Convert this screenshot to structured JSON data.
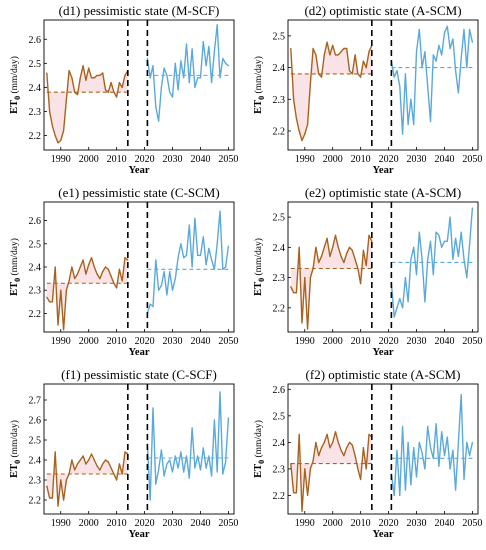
{
  "colors": {
    "hist": "#a8621e",
    "fut": "#5aa9dc",
    "shade": "#f7d9dd",
    "vline": "#000000"
  },
  "axes_labels": {
    "x": "Year",
    "y_main": "ET",
    "y_sub": "0",
    "y_unit": "(mm/day)"
  },
  "chart_data": [
    {
      "id": "d1",
      "type": "line",
      "title": "(d1) pessimistic state (M-SCF)",
      "xlim": [
        1984,
        2052
      ],
      "ylim": [
        2.14,
        2.68
      ],
      "xticks": [
        1990,
        2000,
        2010,
        2020,
        2030,
        2040,
        2050
      ],
      "yticks": [
        2.2,
        2.3,
        2.4,
        2.5,
        2.6
      ],
      "xlabel": "Year",
      "ylabel": "ET0 (mm/day)",
      "vlines": [
        2014,
        2021
      ],
      "series": [
        {
          "role": "historical",
          "x": [
            1985,
            1986,
            1987,
            1988,
            1989,
            1990,
            1991,
            1992,
            1993,
            1994,
            1995,
            1996,
            1997,
            1998,
            1999,
            2000,
            2001,
            2002,
            2003,
            2004,
            2005,
            2006,
            2007,
            2008,
            2009,
            2010,
            2011,
            2012,
            2013,
            2014
          ],
          "values": [
            2.46,
            2.3,
            2.24,
            2.2,
            2.17,
            2.18,
            2.22,
            2.35,
            2.47,
            2.44,
            2.38,
            2.37,
            2.44,
            2.49,
            2.43,
            2.48,
            2.44,
            2.44,
            2.45,
            2.45,
            2.46,
            2.39,
            2.38,
            2.42,
            2.38,
            2.36,
            2.42,
            2.4,
            2.45,
            2.47
          ],
          "mean": 2.38
        },
        {
          "role": "future",
          "x": [
            2021,
            2022,
            2023,
            2024,
            2025,
            2026,
            2027,
            2028,
            2029,
            2030,
            2031,
            2032,
            2033,
            2034,
            2035,
            2036,
            2037,
            2038,
            2039,
            2040,
            2041,
            2042,
            2043,
            2044,
            2045,
            2046,
            2047,
            2048,
            2049,
            2050
          ],
          "values": [
            2.52,
            2.44,
            2.49,
            2.32,
            2.26,
            2.4,
            2.48,
            2.45,
            2.38,
            2.36,
            2.5,
            2.39,
            2.51,
            2.44,
            2.58,
            2.42,
            2.56,
            2.4,
            2.44,
            2.44,
            2.59,
            2.49,
            2.57,
            2.42,
            2.55,
            2.66,
            2.44,
            2.52,
            2.5,
            2.49
          ],
          "mean": 2.45
        }
      ]
    },
    {
      "id": "d2",
      "type": "line",
      "title": "(d2) optimistic state (A-SCM)",
      "xlim": [
        1984,
        2052
      ],
      "ylim": [
        2.14,
        2.55
      ],
      "xticks": [
        1990,
        2000,
        2010,
        2020,
        2030,
        2040,
        2050
      ],
      "yticks": [
        2.2,
        2.3,
        2.4,
        2.5
      ],
      "xlabel": "Year",
      "ylabel": "ET0 (mm/day)",
      "vlines": [
        2014,
        2021
      ],
      "series": [
        {
          "role": "historical",
          "x": [
            1985,
            1986,
            1987,
            1988,
            1989,
            1990,
            1991,
            1992,
            1993,
            1994,
            1995,
            1996,
            1997,
            1998,
            1999,
            2000,
            2001,
            2002,
            2003,
            2004,
            2005,
            2006,
            2007,
            2008,
            2009,
            2010,
            2011,
            2012,
            2013,
            2014
          ],
          "values": [
            2.46,
            2.3,
            2.24,
            2.2,
            2.17,
            2.19,
            2.22,
            2.35,
            2.46,
            2.44,
            2.38,
            2.37,
            2.44,
            2.48,
            2.44,
            2.47,
            2.44,
            2.44,
            2.45,
            2.46,
            2.46,
            2.39,
            2.38,
            2.44,
            2.38,
            2.37,
            2.42,
            2.4,
            2.45,
            2.47
          ],
          "mean": 2.38
        },
        {
          "role": "future",
          "x": [
            2021,
            2022,
            2023,
            2024,
            2025,
            2026,
            2027,
            2028,
            2029,
            2030,
            2031,
            2032,
            2033,
            2034,
            2035,
            2036,
            2037,
            2038,
            2039,
            2040,
            2041,
            2042,
            2043,
            2044,
            2045,
            2046,
            2047,
            2048,
            2049,
            2050
          ],
          "values": [
            2.42,
            2.37,
            2.39,
            2.34,
            2.19,
            2.38,
            2.22,
            2.3,
            2.22,
            2.45,
            2.52,
            2.4,
            2.45,
            2.34,
            2.23,
            2.44,
            2.42,
            2.47,
            2.44,
            2.51,
            2.53,
            2.46,
            2.49,
            2.39,
            2.32,
            2.43,
            2.52,
            2.4,
            2.52,
            2.48
          ],
          "mean": 2.4
        }
      ]
    },
    {
      "id": "e1",
      "type": "line",
      "title": "(e1) pessimistic state (C-SCM)",
      "xlim": [
        1984,
        2052
      ],
      "ylim": [
        2.12,
        2.68
      ],
      "xticks": [
        1990,
        2000,
        2010,
        2020,
        2030,
        2040,
        2050
      ],
      "yticks": [
        2.2,
        2.3,
        2.4,
        2.5,
        2.6
      ],
      "xlabel": "Year",
      "ylabel": "ET0 (mm/day)",
      "vlines": [
        2014,
        2021
      ],
      "series": [
        {
          "role": "historical",
          "x": [
            1985,
            1986,
            1987,
            1988,
            1989,
            1990,
            1991,
            1992,
            1993,
            1994,
            1995,
            1996,
            1997,
            1998,
            1999,
            2000,
            2001,
            2002,
            2003,
            2004,
            2005,
            2006,
            2007,
            2008,
            2009,
            2010,
            2011,
            2012,
            2013,
            2014
          ],
          "values": [
            2.27,
            2.25,
            2.25,
            2.4,
            2.15,
            2.3,
            2.13,
            2.3,
            2.34,
            2.4,
            2.35,
            2.37,
            2.4,
            2.43,
            2.37,
            2.41,
            2.44,
            2.4,
            2.37,
            2.35,
            2.38,
            2.4,
            2.39,
            2.36,
            2.33,
            2.31,
            2.39,
            2.34,
            2.44,
            2.43
          ],
          "mean": 2.33
        },
        {
          "role": "future",
          "x": [
            2021,
            2022,
            2023,
            2024,
            2025,
            2026,
            2027,
            2028,
            2029,
            2030,
            2031,
            2032,
            2033,
            2034,
            2035,
            2036,
            2037,
            2038,
            2039,
            2040,
            2041,
            2042,
            2043,
            2044,
            2045,
            2046,
            2047,
            2048,
            2049,
            2050
          ],
          "values": [
            2.2,
            2.24,
            2.23,
            2.43,
            2.3,
            2.32,
            2.38,
            2.28,
            2.38,
            2.3,
            2.35,
            2.44,
            2.5,
            2.44,
            2.45,
            2.58,
            2.4,
            2.61,
            2.45,
            2.45,
            2.53,
            2.41,
            2.48,
            2.43,
            2.39,
            2.5,
            2.64,
            2.39,
            2.4,
            2.49
          ],
          "mean": 2.39
        }
      ]
    },
    {
      "id": "e2",
      "type": "line",
      "title": "(e2) optimistic state (A-SCM)",
      "xlim": [
        1984,
        2052
      ],
      "ylim": [
        2.12,
        2.55
      ],
      "xticks": [
        1990,
        2000,
        2010,
        2020,
        2030,
        2040,
        2050
      ],
      "yticks": [
        2.2,
        2.3,
        2.4,
        2.5
      ],
      "xlabel": "Year",
      "ylabel": "ET0 (mm/day)",
      "vlines": [
        2014,
        2021
      ],
      "series": [
        {
          "role": "historical",
          "x": [
            1985,
            1986,
            1987,
            1988,
            1989,
            1990,
            1991,
            1992,
            1993,
            1994,
            1995,
            1996,
            1997,
            1998,
            1999,
            2000,
            2001,
            2002,
            2003,
            2004,
            2005,
            2006,
            2007,
            2008,
            2009,
            2010,
            2011,
            2012,
            2013,
            2014
          ],
          "values": [
            2.27,
            2.25,
            2.25,
            2.4,
            2.15,
            2.3,
            2.13,
            2.3,
            2.33,
            2.4,
            2.35,
            2.37,
            2.4,
            2.43,
            2.37,
            2.4,
            2.44,
            2.4,
            2.37,
            2.35,
            2.38,
            2.4,
            2.39,
            2.36,
            2.33,
            2.28,
            2.39,
            2.34,
            2.44,
            2.42
          ],
          "mean": 2.33
        },
        {
          "role": "future",
          "x": [
            2021,
            2022,
            2023,
            2024,
            2025,
            2026,
            2027,
            2028,
            2029,
            2030,
            2031,
            2032,
            2033,
            2034,
            2035,
            2036,
            2037,
            2038,
            2039,
            2040,
            2041,
            2042,
            2043,
            2044,
            2045,
            2046,
            2047,
            2048,
            2049,
            2050
          ],
          "values": [
            2.28,
            2.17,
            2.2,
            2.23,
            2.2,
            2.3,
            2.22,
            2.36,
            2.4,
            2.31,
            2.45,
            2.36,
            2.22,
            2.36,
            2.42,
            2.31,
            2.45,
            2.44,
            2.4,
            2.42,
            2.42,
            2.5,
            2.36,
            2.43,
            2.37,
            2.45,
            2.36,
            2.3,
            2.41,
            2.53
          ],
          "mean": 2.35
        }
      ]
    },
    {
      "id": "f1",
      "type": "line",
      "title": "(f1) pessimistic state (C-SCF)",
      "xlim": [
        1984,
        2052
      ],
      "ylim": [
        2.13,
        2.78
      ],
      "xticks": [
        1990,
        2000,
        2010,
        2020,
        2030,
        2040,
        2050
      ],
      "yticks": [
        2.2,
        2.3,
        2.4,
        2.5,
        2.6,
        2.7
      ],
      "xlabel": "Year",
      "ylabel": "ET0 (mm/day)",
      "vlines": [
        2014,
        2021
      ],
      "series": [
        {
          "role": "historical",
          "x": [
            1985,
            1986,
            1987,
            1988,
            1989,
            1990,
            1991,
            1992,
            1993,
            1994,
            1995,
            1996,
            1997,
            1998,
            1999,
            2000,
            2001,
            2002,
            2003,
            2004,
            2005,
            2006,
            2007,
            2008,
            2009,
            2010,
            2011,
            2012,
            2013,
            2014
          ],
          "values": [
            2.27,
            2.21,
            2.21,
            2.44,
            2.17,
            2.3,
            2.2,
            2.3,
            2.33,
            2.4,
            2.35,
            2.38,
            2.4,
            2.42,
            2.38,
            2.4,
            2.43,
            2.4,
            2.37,
            2.35,
            2.38,
            2.4,
            2.39,
            2.36,
            2.33,
            2.3,
            2.38,
            2.33,
            2.44,
            2.43
          ],
          "mean": 2.33
        },
        {
          "role": "future",
          "x": [
            2021,
            2022,
            2023,
            2024,
            2025,
            2026,
            2027,
            2028,
            2029,
            2030,
            2031,
            2032,
            2033,
            2034,
            2035,
            2036,
            2037,
            2038,
            2039,
            2040,
            2041,
            2042,
            2043,
            2044,
            2045,
            2046,
            2047,
            2048,
            2049,
            2050
          ],
          "values": [
            2.48,
            2.2,
            2.66,
            2.28,
            2.35,
            2.45,
            2.32,
            2.38,
            2.4,
            2.34,
            2.42,
            2.36,
            2.44,
            2.34,
            2.42,
            2.31,
            2.56,
            2.36,
            2.42,
            2.35,
            2.46,
            2.36,
            2.42,
            2.32,
            2.6,
            2.34,
            2.74,
            2.33,
            2.39,
            2.61
          ],
          "mean": 2.41
        }
      ]
    },
    {
      "id": "f2",
      "type": "line",
      "title": "(f2) optimistic state (A-SCM)",
      "xlim": [
        1984,
        2052
      ],
      "ylim": [
        2.13,
        2.62
      ],
      "xticks": [
        1990,
        2000,
        2010,
        2020,
        2030,
        2040,
        2050
      ],
      "yticks": [
        2.2,
        2.3,
        2.4,
        2.5,
        2.6
      ],
      "xlabel": "Year",
      "ylabel": "ET0 (mm/day)",
      "vlines": [
        2014,
        2021
      ],
      "series": [
        {
          "role": "historical",
          "x": [
            1985,
            1986,
            1987,
            1988,
            1989,
            1990,
            1991,
            1992,
            1993,
            1994,
            1995,
            1996,
            1997,
            1998,
            1999,
            2000,
            2001,
            2002,
            2003,
            2004,
            2005,
            2006,
            2007,
            2008,
            2009,
            2010,
            2011,
            2012,
            2013,
            2014
          ],
          "values": [
            2.32,
            2.21,
            2.21,
            2.43,
            2.14,
            2.3,
            2.2,
            2.3,
            2.33,
            2.4,
            2.35,
            2.38,
            2.4,
            2.43,
            2.38,
            2.4,
            2.44,
            2.4,
            2.37,
            2.35,
            2.38,
            2.4,
            2.39,
            2.35,
            2.3,
            2.26,
            2.38,
            2.3,
            2.43,
            2.42
          ],
          "mean": 2.32
        },
        {
          "role": "future",
          "x": [
            2021,
            2022,
            2023,
            2024,
            2025,
            2026,
            2027,
            2028,
            2029,
            2030,
            2031,
            2032,
            2033,
            2034,
            2035,
            2036,
            2037,
            2038,
            2039,
            2040,
            2041,
            2042,
            2043,
            2044,
            2045,
            2046,
            2047,
            2048,
            2049,
            2050
          ],
          "values": [
            2.28,
            2.2,
            2.37,
            2.2,
            2.46,
            2.22,
            2.4,
            2.24,
            2.38,
            2.27,
            2.4,
            2.36,
            2.3,
            2.46,
            2.38,
            2.34,
            2.47,
            2.31,
            2.44,
            2.35,
            2.42,
            2.3,
            2.37,
            2.22,
            2.4,
            2.58,
            2.26,
            2.4,
            2.35,
            2.4
          ],
          "mean": 2.34
        }
      ]
    }
  ]
}
